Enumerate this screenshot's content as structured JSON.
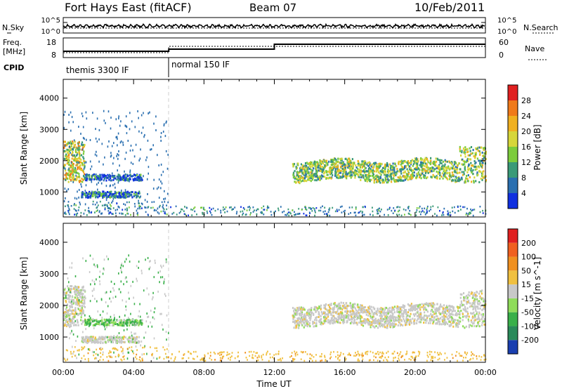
{
  "header": {
    "station": "Fort Hays East (fitACF)",
    "beam": "Beam 07",
    "date": "10/Feb/2011"
  },
  "panels": {
    "nsky_label": "N.Sky",
    "nsearch_label": "N.Search",
    "noise_ticks": [
      "10^5",
      "10^0"
    ],
    "freq_label_1": "Freq.",
    "freq_label_2": "[MHz]",
    "nave_label": "Nave",
    "cpid_label": "CPID",
    "freq_ticks": [
      "18",
      "8"
    ],
    "nave_ticks": [
      "60",
      "0"
    ],
    "modes": [
      {
        "name": "themis 3300 IF",
        "start_hour": 0
      },
      {
        "name": "normal 150 IF",
        "start_hour": 6
      }
    ]
  },
  "chart_data": [
    {
      "type": "heatmap",
      "title": "",
      "xlabel": "",
      "ylabel": "Slant Range [km]",
      "xlim": [
        0,
        24
      ],
      "ylim": [
        200,
        4600
      ],
      "yticks": [
        1000,
        2000,
        3000,
        4000
      ],
      "colorbar": {
        "label": "Power [dB]",
        "ticks": [
          "4",
          "8",
          "12",
          "16",
          "20",
          "24",
          "28"
        ],
        "colors": [
          "#1030e0",
          "#2a6fb0",
          "#3a9a78",
          "#7ccc3c",
          "#d6d63a",
          "#f0b020",
          "#f07a1a",
          "#e02020"
        ]
      },
      "regions": [
        {
          "name": "early-echoes",
          "hours": [
            0,
            1.2
          ],
          "range_km": [
            1300,
            2600
          ],
          "power_db": 18
        },
        {
          "name": "low-band",
          "hours": [
            1,
            4.3
          ],
          "range_km": [
            800,
            1000
          ],
          "power_db": 6
        },
        {
          "name": "mid-band",
          "hours": [
            1.2,
            4.5
          ],
          "range_km": [
            1350,
            1550
          ],
          "power_db": 5
        },
        {
          "name": "evening-band",
          "hours": [
            13,
            24
          ],
          "range_km": [
            1300,
            2400
          ],
          "power_db": 14
        }
      ]
    },
    {
      "type": "heatmap",
      "title": "",
      "xlabel": "Time UT",
      "ylabel": "Slant Range [km]",
      "xlim": [
        0,
        24
      ],
      "ylim": [
        200,
        4600
      ],
      "yticks": [
        1000,
        2000,
        3000,
        4000
      ],
      "colorbar": {
        "label": "Velocity [m s^-1]",
        "ticks": [
          "200",
          "100",
          "50",
          "15",
          "-15",
          "-50",
          "-100",
          "-200"
        ],
        "colors": [
          "#1a3fb0",
          "#2a8a5a",
          "#39b04a",
          "#8fdc5a",
          "#c8c8c8",
          "#f0c040",
          "#f09020",
          "#f06020",
          "#e02020"
        ]
      },
      "regions": [
        {
          "name": "early-echoes",
          "hours": [
            0,
            1.2
          ],
          "range_km": [
            1300,
            2600
          ],
          "velocity": 0
        },
        {
          "name": "low-band",
          "hours": [
            1,
            4.3
          ],
          "range_km": [
            800,
            1000
          ],
          "velocity": 0
        },
        {
          "name": "mid-band",
          "hours": [
            1.2,
            4.5
          ],
          "range_km": [
            1350,
            1550
          ],
          "velocity": 30
        },
        {
          "name": "evening-band",
          "hours": [
            13,
            24
          ],
          "range_km": [
            1300,
            2400
          ],
          "velocity": 0
        }
      ],
      "xticks": [
        "00:00",
        "04:00",
        "08:00",
        "12:00",
        "16:00",
        "20:00",
        "00:00"
      ]
    }
  ]
}
